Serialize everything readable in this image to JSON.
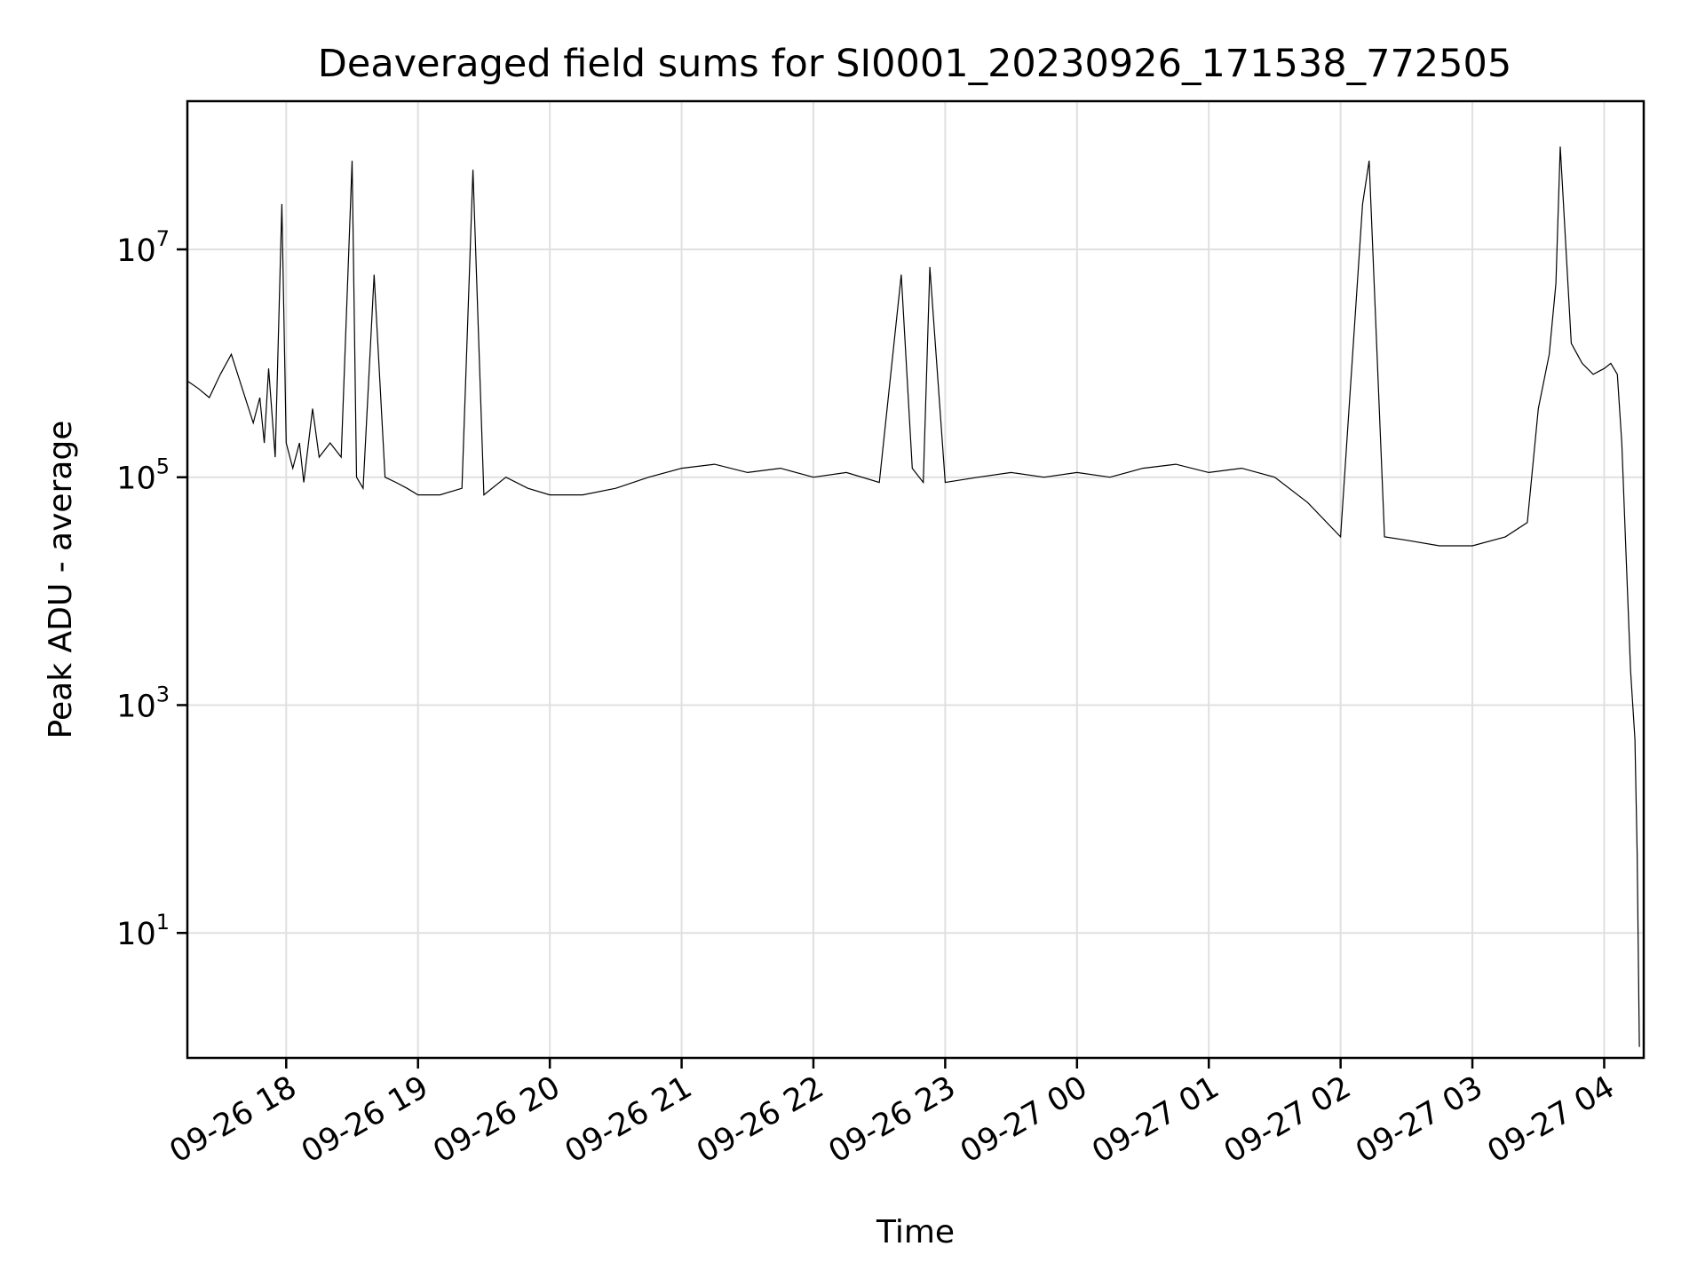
{
  "chart_data": {
    "type": "line",
    "title": "Deaveraged field sums for SI0001_20230926_171538_772505",
    "xlabel": "Time",
    "ylabel": "Peak ADU - average",
    "yscale": "log",
    "grid": true,
    "line_color": "#000000",
    "xlim": [
      "2023-09-26 17:15",
      "2023-09-27 04:18"
    ],
    "ylim": [
      0.8,
      200000000
    ],
    "x_ticks": [
      "09-26 18",
      "09-26 19",
      "09-26 20",
      "09-26 21",
      "09-26 22",
      "09-26 23",
      "09-27 00",
      "09-27 01",
      "09-27 02",
      "09-27 03",
      "09-27 04"
    ],
    "y_ticks": [
      {
        "base": "10",
        "exp": "1",
        "value": 10
      },
      {
        "base": "10",
        "exp": "3",
        "value": 1000
      },
      {
        "base": "10",
        "exp": "5",
        "value": 100000
      },
      {
        "base": "10",
        "exp": "7",
        "value": 10000000
      }
    ],
    "series": [
      {
        "x": [
          "2023-09-26 17:15",
          "2023-09-26 17:20",
          "2023-09-26 17:25",
          "2023-09-26 17:30",
          "2023-09-26 17:35",
          "2023-09-26 17:40",
          "2023-09-26 17:45",
          "2023-09-26 17:48",
          "2023-09-26 17:50",
          "2023-09-26 17:52",
          "2023-09-26 17:55",
          "2023-09-26 17:58",
          "2023-09-26 18:00",
          "2023-09-26 18:03",
          "2023-09-26 18:06",
          "2023-09-26 18:08",
          "2023-09-26 18:12",
          "2023-09-26 18:15",
          "2023-09-26 18:20",
          "2023-09-26 18:25",
          "2023-09-26 18:30",
          "2023-09-26 18:32",
          "2023-09-26 18:35",
          "2023-09-26 18:40",
          "2023-09-26 18:45",
          "2023-09-26 18:50",
          "2023-09-26 18:55",
          "2023-09-26 19:00",
          "2023-09-26 19:10",
          "2023-09-26 19:20",
          "2023-09-26 19:25",
          "2023-09-26 19:30",
          "2023-09-26 19:40",
          "2023-09-26 19:50",
          "2023-09-26 20:00",
          "2023-09-26 20:15",
          "2023-09-26 20:30",
          "2023-09-26 20:45",
          "2023-09-26 21:00",
          "2023-09-26 21:15",
          "2023-09-26 21:30",
          "2023-09-26 21:45",
          "2023-09-26 22:00",
          "2023-09-26 22:15",
          "2023-09-26 22:30",
          "2023-09-26 22:40",
          "2023-09-26 22:45",
          "2023-09-26 22:50",
          "2023-09-26 22:53",
          "2023-09-26 23:00",
          "2023-09-26 23:15",
          "2023-09-26 23:30",
          "2023-09-26 23:45",
          "2023-09-27 00:00",
          "2023-09-27 00:15",
          "2023-09-27 00:30",
          "2023-09-27 00:45",
          "2023-09-27 01:00",
          "2023-09-27 01:15",
          "2023-09-27 01:30",
          "2023-09-27 01:45",
          "2023-09-27 02:00",
          "2023-09-27 02:10",
          "2023-09-27 02:13",
          "2023-09-27 02:20",
          "2023-09-27 02:30",
          "2023-09-27 02:45",
          "2023-09-27 03:00",
          "2023-09-27 03:15",
          "2023-09-27 03:25",
          "2023-09-27 03:30",
          "2023-09-27 03:35",
          "2023-09-27 03:38",
          "2023-09-27 03:40",
          "2023-09-27 03:45",
          "2023-09-27 03:50",
          "2023-09-27 03:55",
          "2023-09-27 04:00",
          "2023-09-27 04:03",
          "2023-09-27 04:06",
          "2023-09-27 04:08",
          "2023-09-27 04:10",
          "2023-09-27 04:12",
          "2023-09-27 04:14",
          "2023-09-27 04:15",
          "2023-09-27 04:16"
        ],
        "y": [
          700000,
          600000,
          500000,
          800000,
          1200000,
          600000,
          300000,
          500000,
          200000,
          900000,
          150000,
          25000000,
          200000,
          120000,
          200000,
          90000,
          400000,
          150000,
          200000,
          150000,
          60000000,
          100000,
          80000,
          6000000,
          100000,
          90000,
          80000,
          70000,
          70000,
          80000,
          50000000,
          70000,
          100000,
          80000,
          70000,
          70000,
          80000,
          100000,
          120000,
          130000,
          110000,
          120000,
          100000,
          110000,
          90000,
          6000000,
          120000,
          90000,
          7000000,
          90000,
          100000,
          110000,
          100000,
          110000,
          100000,
          120000,
          130000,
          110000,
          120000,
          100000,
          60000,
          30000,
          25000000,
          60000000,
          30000,
          28000,
          25000,
          25000,
          30000,
          40000,
          400000,
          1200000,
          5000000,
          80000000,
          1500000,
          1000000,
          800000,
          900000,
          1000000,
          800000,
          200000,
          20000,
          2000,
          500,
          50,
          1
        ]
      }
    ]
  }
}
